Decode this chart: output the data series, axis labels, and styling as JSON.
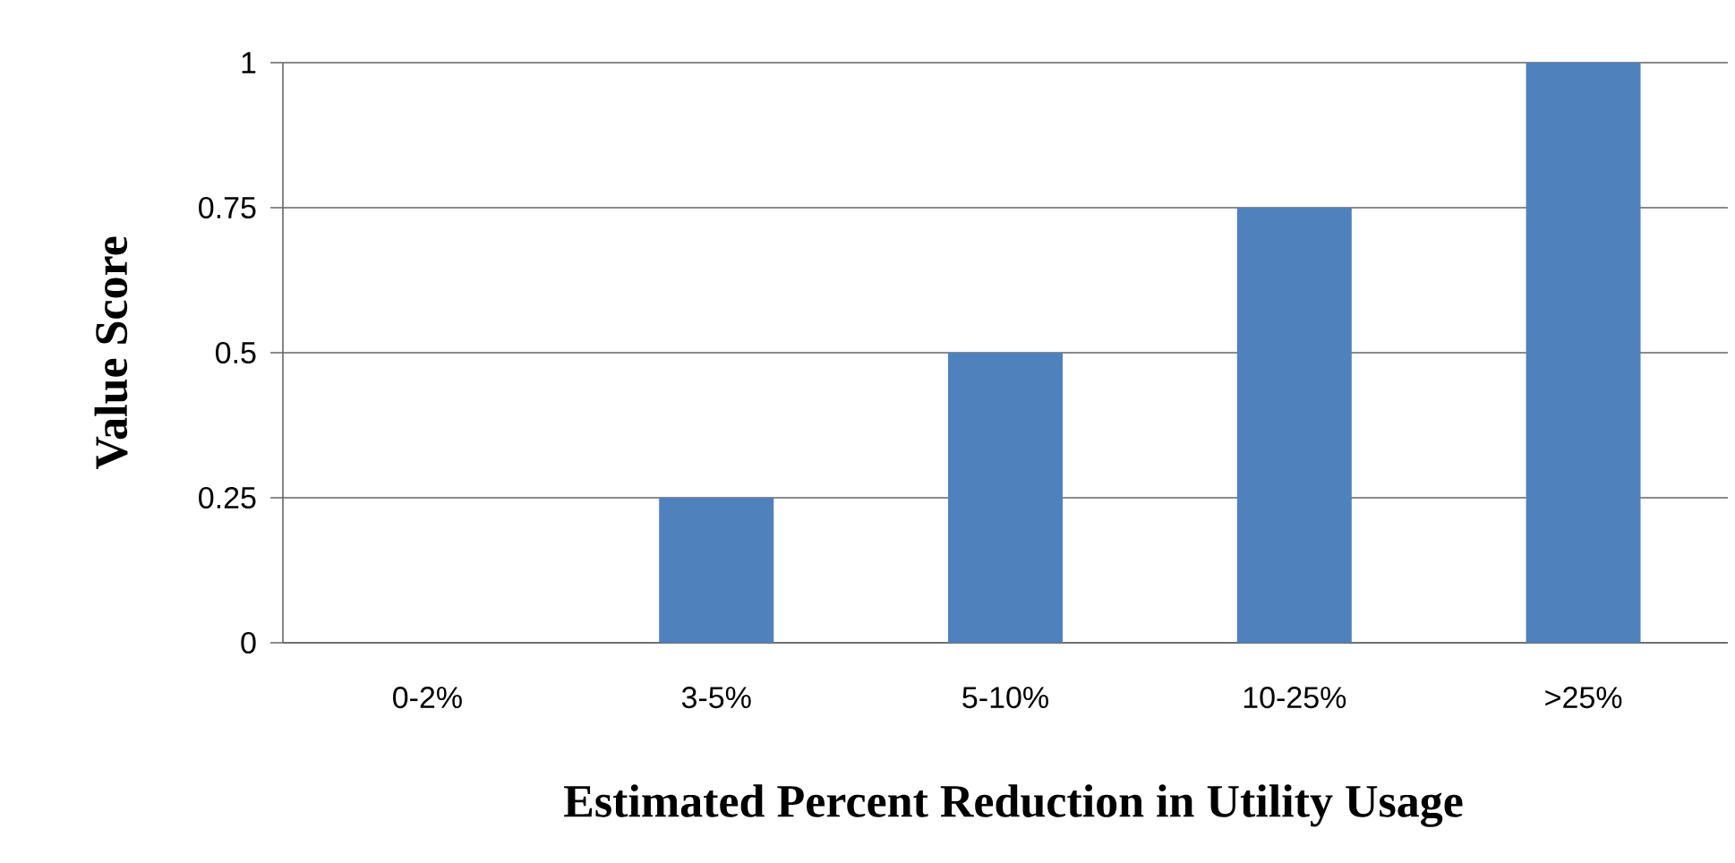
{
  "chart_data": {
    "type": "bar",
    "xlabel": "Estimated Percent Reduction in Utility Usage",
    "ylabel": "Value Score",
    "categories": [
      "0-2%",
      "3-5%",
      "5-10%",
      "10-25%",
      ">25%"
    ],
    "values": [
      0,
      0.25,
      0.5,
      0.75,
      1
    ],
    "color": "#4f81bd",
    "ylim": [
      0,
      1
    ],
    "yticks": [
      0,
      0.25,
      0.5,
      0.75,
      1
    ],
    "grid": "y"
  }
}
